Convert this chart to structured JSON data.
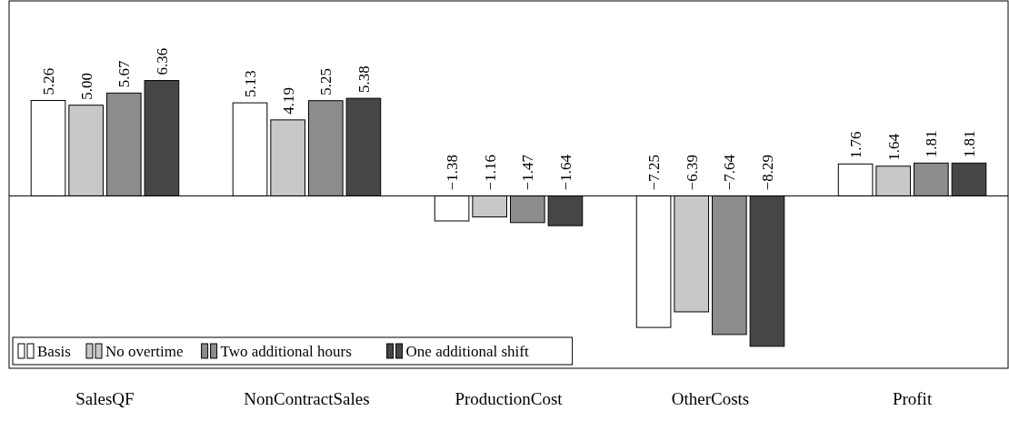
{
  "chart_data": {
    "type": "bar",
    "categories": [
      "SalesQF",
      "NonContractSales",
      "ProductionCost",
      "OtherCosts",
      "Profit"
    ],
    "series": [
      {
        "name": "Basis",
        "color": "#ffffff",
        "values": [
          5.26,
          5.13,
          -1.38,
          -7.25,
          1.76
        ],
        "value_labels": [
          "5.26",
          "5.13",
          "−1.38",
          "−7.25",
          "1.76"
        ]
      },
      {
        "name": "No overtime",
        "color": "#c8c8c8",
        "values": [
          5.0,
          4.19,
          -1.16,
          -6.39,
          1.64
        ],
        "value_labels": [
          "5.00",
          "4.19",
          "−1.16",
          "−6.39",
          "1.64"
        ]
      },
      {
        "name": "Two additional hours",
        "color": "#8c8c8c",
        "values": [
          5.67,
          5.25,
          -1.47,
          -7.64,
          1.81
        ],
        "value_labels": [
          "5.67",
          "5.25",
          "−1.47",
          "−7.64",
          "1.81"
        ]
      },
      {
        "name": "One additional shift",
        "color": "#464646",
        "values": [
          6.36,
          5.38,
          -1.64,
          -8.29,
          1.81
        ],
        "value_labels": [
          "6.36",
          "5.38",
          "−1.64",
          "−8.29",
          "1.81"
        ]
      }
    ],
    "legend": "bottom left"
  }
}
